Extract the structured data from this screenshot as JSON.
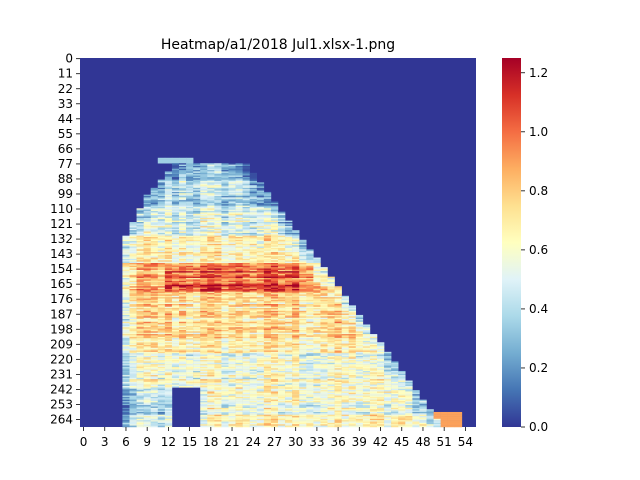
{
  "chart_data": {
    "type": "heatmap",
    "title": "Heatmap/a1/2018 Jul1.xlsx-1.png",
    "xlabel": "",
    "ylabel": "",
    "x_range": [
      0,
      56
    ],
    "y_range": [
      0,
      270
    ],
    "x_ticks": [
      "0",
      "3",
      "6",
      "9",
      "12",
      "15",
      "18",
      "21",
      "24",
      "27",
      "30",
      "33",
      "36",
      "39",
      "42",
      "45",
      "48",
      "51",
      "54"
    ],
    "y_ticks": [
      "0",
      "11",
      "22",
      "33",
      "44",
      "55",
      "66",
      "77",
      "88",
      "99",
      "110",
      "121",
      "132",
      "143",
      "154",
      "165",
      "176",
      "187",
      "198",
      "209",
      "220",
      "231",
      "242",
      "253",
      "264"
    ],
    "colorbar": {
      "vmin": 0.0,
      "vmax": 1.25,
      "ticks": [
        "0.0",
        "0.2",
        "0.4",
        "0.6",
        "0.8",
        "1.0",
        "1.2"
      ],
      "colormap": "RdYlBu_r"
    },
    "background_value": 0.0,
    "data_description": "Sparse triangular activity region: begins near row 75, x 9-24; left edge near x 6 from row 130 to 270; right edge slopes from x 23 at row 77 to x 51 at row 270; peak values ~1.2 around rows 152-170, x 12-32; lower-right corner near x 51-53 reaching ~0.9",
    "grid": false
  }
}
